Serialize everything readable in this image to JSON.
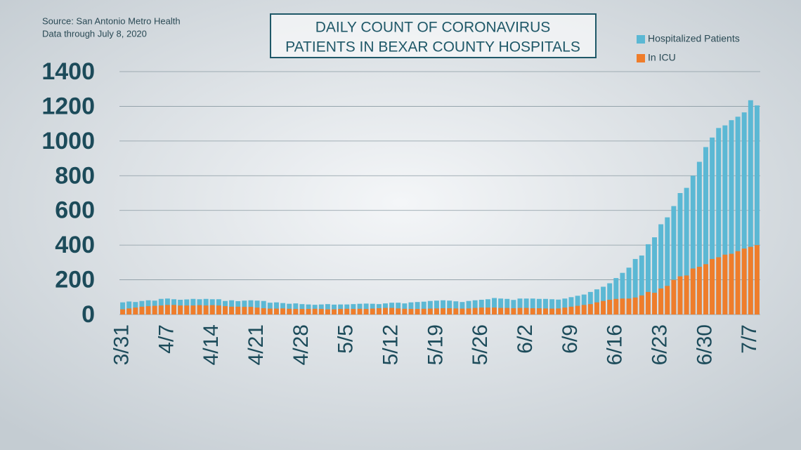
{
  "chart_data": {
    "type": "bar",
    "overlap": true,
    "title": [
      "DAILY COUNT OF CORONAVIRUS",
      "PATIENTS IN BEXAR COUNTY HOSPITALS"
    ],
    "notes": [
      "Source: San Antonio Metro Health",
      "Data through July 8, 2020"
    ],
    "categories": [
      "3/31",
      null,
      null,
      null,
      null,
      null,
      null,
      "4/7",
      null,
      null,
      null,
      null,
      null,
      null,
      "4/14",
      null,
      null,
      null,
      null,
      null,
      null,
      "4/21",
      null,
      null,
      null,
      null,
      null,
      null,
      "4/28",
      null,
      null,
      null,
      null,
      null,
      null,
      "5/5",
      null,
      null,
      null,
      null,
      null,
      null,
      "5/12",
      null,
      null,
      null,
      null,
      null,
      null,
      "5/19",
      null,
      null,
      null,
      null,
      null,
      null,
      "5/26",
      null,
      null,
      null,
      null,
      null,
      null,
      "6/2",
      null,
      null,
      null,
      null,
      null,
      null,
      "6/9",
      null,
      null,
      null,
      null,
      null,
      null,
      "6/16",
      null,
      null,
      null,
      null,
      null,
      null,
      "6/23",
      null,
      null,
      null,
      null,
      null,
      null,
      "6/30",
      null,
      null,
      null,
      null,
      null,
      null,
      "7/7",
      null
    ],
    "series": [
      {
        "name": "Hospitalized Patients",
        "color": "#5bb8d4",
        "values": [
          70,
          75,
          72,
          78,
          82,
          80,
          90,
          92,
          88,
          85,
          87,
          90,
          88,
          90,
          88,
          88,
          78,
          82,
          77,
          80,
          82,
          80,
          78,
          68,
          70,
          66,
          62,
          64,
          60,
          58,
          56,
          58,
          60,
          57,
          58,
          58,
          60,
          62,
          63,
          62,
          60,
          64,
          68,
          68,
          64,
          70,
          72,
          74,
          78,
          80,
          82,
          80,
          76,
          72,
          78,
          82,
          85,
          88,
          95,
          92,
          90,
          84,
          92,
          92,
          92,
          90,
          90,
          88,
          86,
          92,
          100,
          108,
          115,
          130,
          145,
          160,
          180,
          210,
          240,
          270,
          320,
          340,
          405,
          445,
          520,
          560,
          625,
          700,
          730,
          800,
          880,
          965,
          1020,
          1075,
          1090,
          1120,
          1140,
          1165,
          1235,
          1205
        ]
      },
      {
        "name": "In ICU",
        "color": "#ef7d2b",
        "values": [
          30,
          35,
          40,
          45,
          48,
          50,
          52,
          55,
          55,
          52,
          52,
          52,
          54,
          52,
          54,
          52,
          48,
          45,
          45,
          44,
          44,
          40,
          36,
          34,
          34,
          35,
          33,
          32,
          32,
          32,
          33,
          32,
          30,
          30,
          32,
          33,
          32,
          33,
          32,
          34,
          36,
          38,
          38,
          35,
          33,
          32,
          32,
          33,
          34,
          35,
          36,
          36,
          35,
          34,
          35,
          38,
          40,
          40,
          40,
          38,
          38,
          36,
          38,
          38,
          36,
          36,
          35,
          34,
          35,
          40,
          45,
          50,
          55,
          60,
          70,
          78,
          85,
          90,
          92,
          92,
          98,
          110,
          130,
          125,
          150,
          165,
          200,
          220,
          225,
          265,
          275,
          290,
          320,
          330,
          345,
          350,
          365,
          380,
          390,
          400
        ]
      }
    ],
    "ylim": [
      0,
      1400
    ],
    "yticks": [
      0,
      200,
      400,
      600,
      800,
      1000,
      1200,
      1400
    ],
    "grid": true,
    "legend": "top-right"
  }
}
